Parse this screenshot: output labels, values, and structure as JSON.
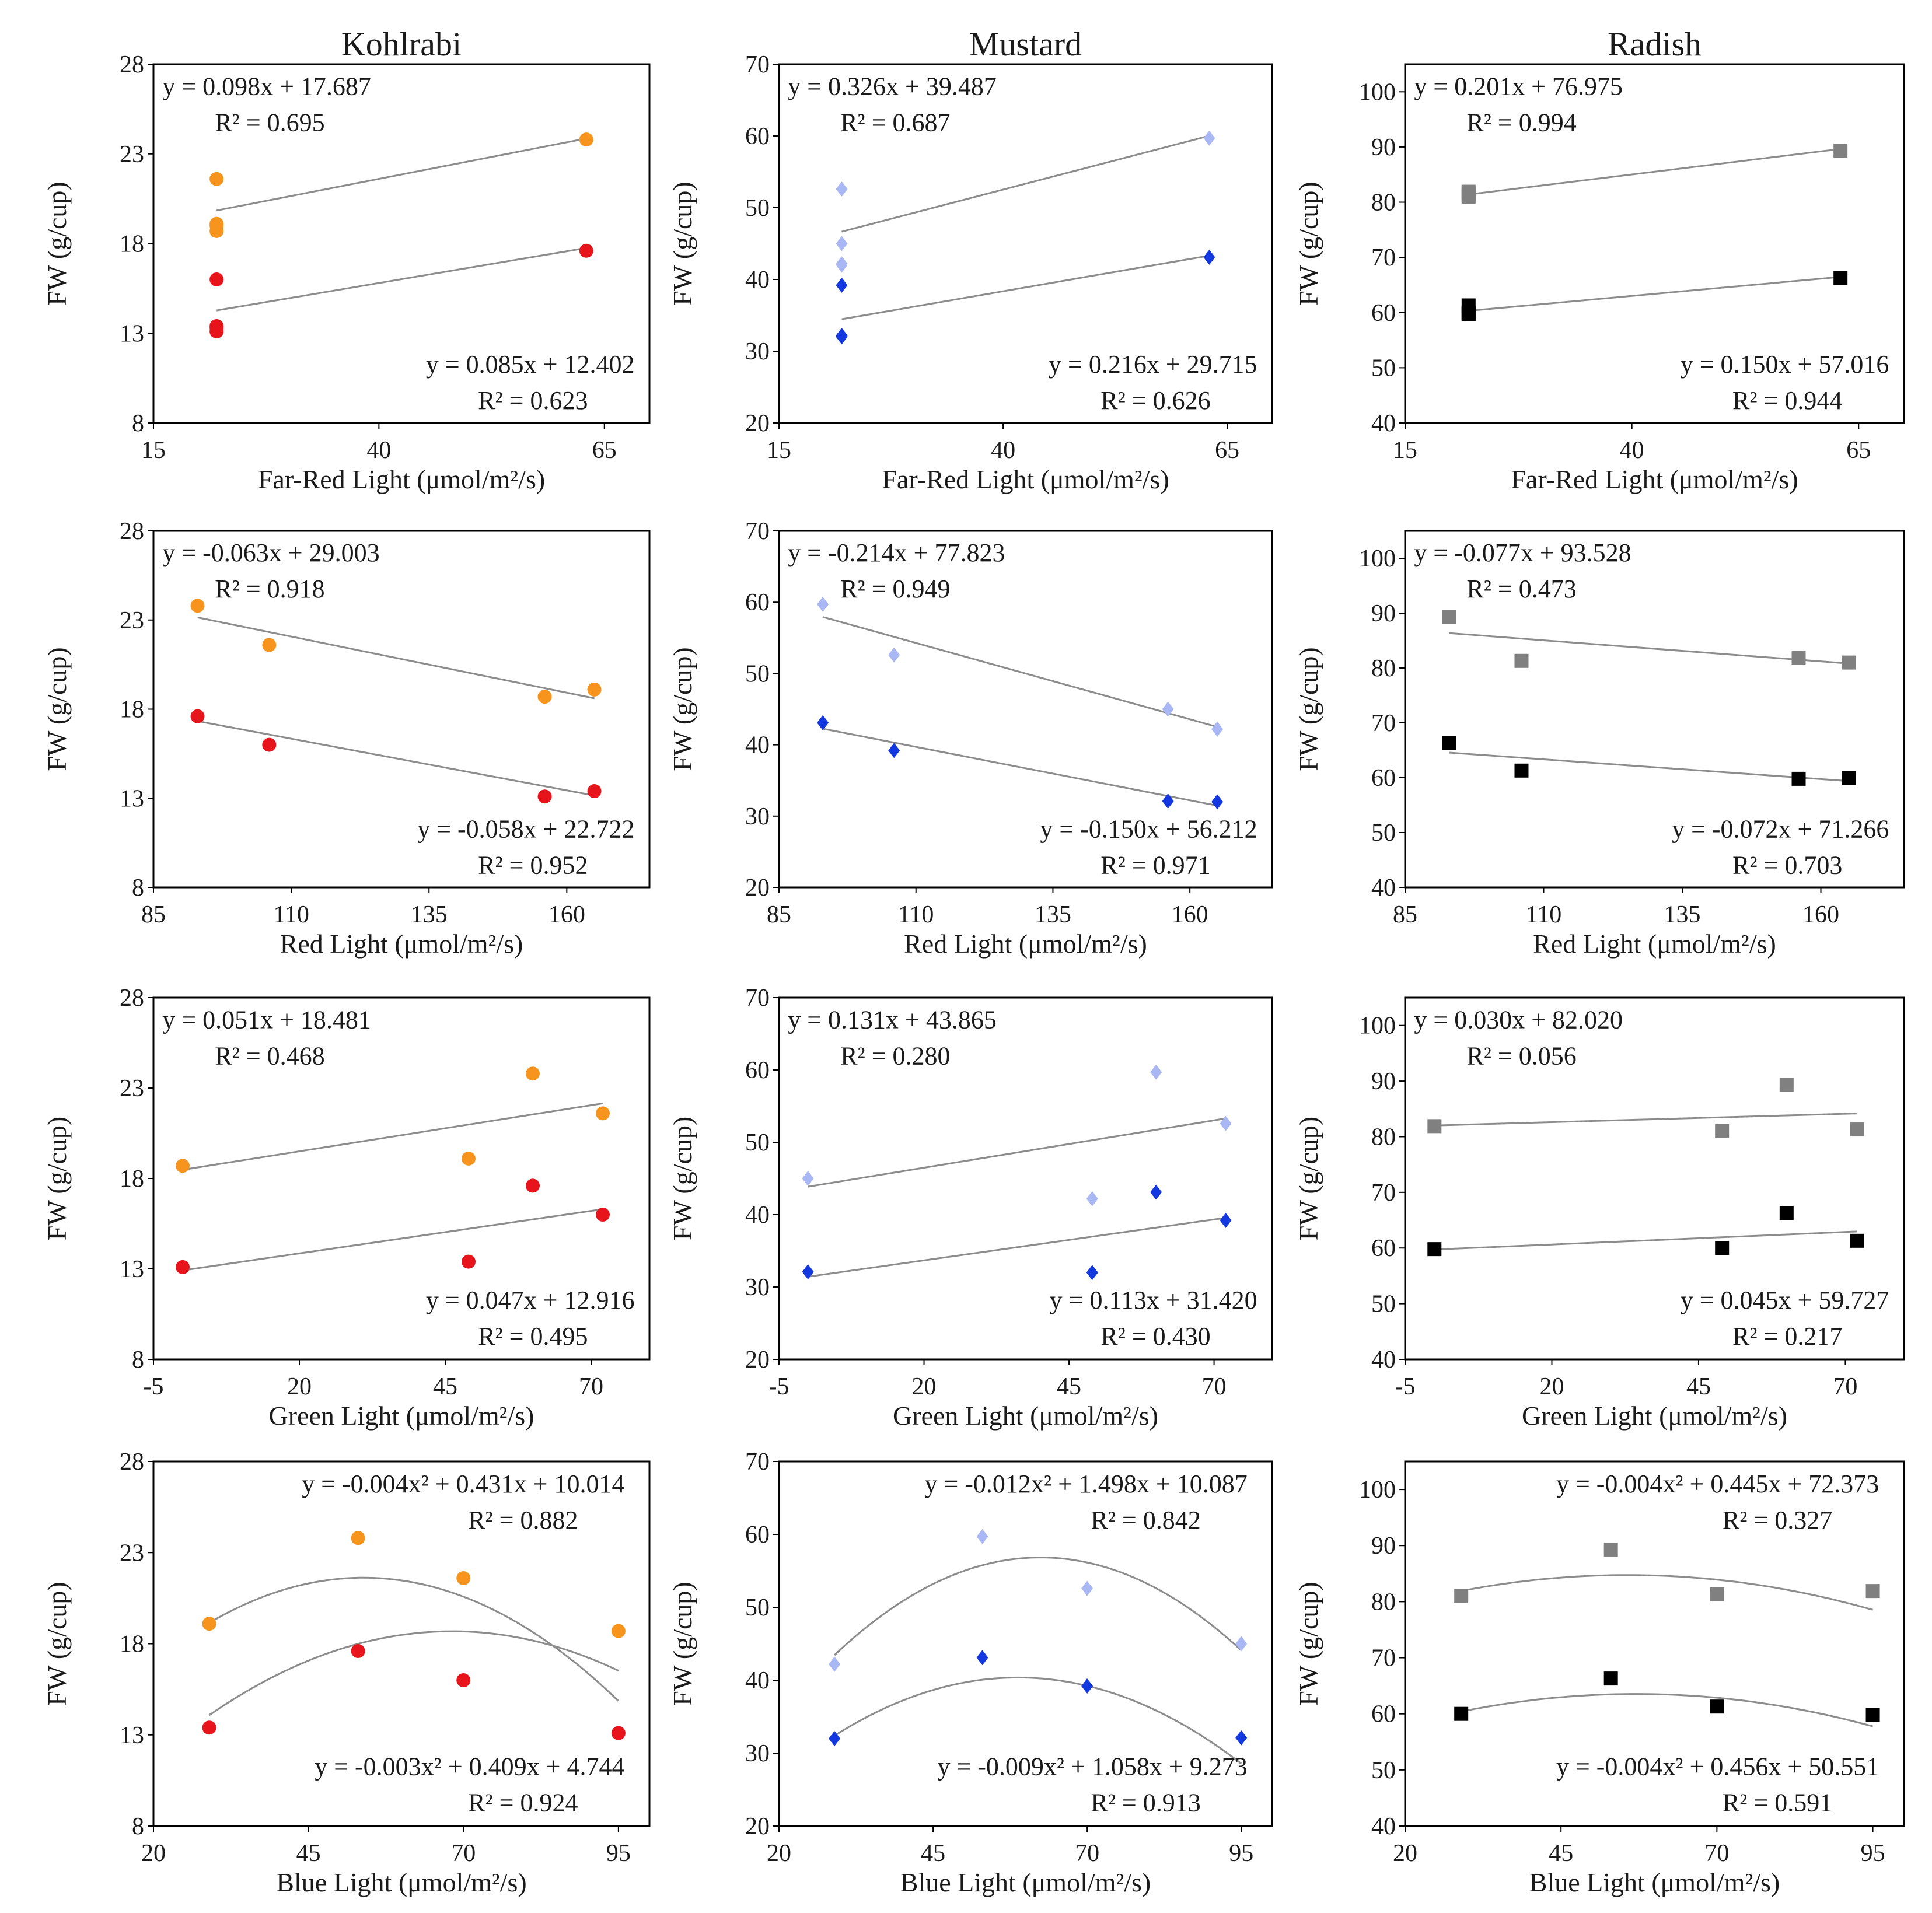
{
  "chart_data": [
    {
      "type": "scatter",
      "crop": "Kohlrabi",
      "title": "Kohlrabi",
      "xlabel": "Far-Red Light (μmol/m²/s)",
      "ylabel": "FW (g/cup)",
      "xlim": [
        15,
        70
      ],
      "xticks": [
        15,
        40,
        65
      ],
      "ylim": [
        8,
        28
      ],
      "yticks": [
        8,
        13,
        18,
        23,
        28
      ],
      "fit": "linear",
      "series": [
        {
          "name": "upper",
          "color": "#F7941D",
          "marker": "circle",
          "x": [
            22,
            22,
            22,
            22,
            63
          ],
          "y": [
            21.6,
            19.1,
            18.7,
            19.0,
            23.8
          ],
          "coef": [
            0.098,
            17.687
          ],
          "equation": "y = 0.098x + 17.687",
          "r2": "R² = 0.695"
        },
        {
          "name": "lower",
          "color": "#E8141B",
          "marker": "circle",
          "x": [
            22,
            22,
            22,
            22,
            63
          ],
          "y": [
            16.0,
            13.3,
            13.1,
            13.4,
            17.6
          ],
          "coef": [
            0.085,
            12.402
          ],
          "equation": "y = 0.085x + 12.402",
          "r2": "R² = 0.623"
        }
      ]
    },
    {
      "type": "scatter",
      "crop": "Mustard",
      "title": "Mustard",
      "xlabel": "Far-Red Light (μmol/m²/s)",
      "ylabel": "FW (g/cup)",
      "xlim": [
        15,
        70
      ],
      "xticks": [
        15,
        40,
        65
      ],
      "ylim": [
        20,
        70
      ],
      "yticks": [
        20,
        30,
        40,
        50,
        60,
        70
      ],
      "fit": "linear",
      "series": [
        {
          "name": "upper",
          "color": "#A9B8F5",
          "marker": "diamond",
          "x": [
            22,
            22,
            22,
            22,
            63
          ],
          "y": [
            52.6,
            45.0,
            42.2,
            42.0,
            59.7
          ],
          "coef": [
            0.326,
            39.487
          ],
          "equation": "y = 0.326x + 39.487",
          "r2": "R² = 0.687"
        },
        {
          "name": "lower",
          "color": "#1438E0",
          "marker": "diamond",
          "x": [
            22,
            22,
            22,
            22,
            63
          ],
          "y": [
            39.2,
            32.1,
            32.0,
            32.2,
            43.1
          ],
          "coef": [
            0.216,
            29.715
          ],
          "equation": "y = 0.216x + 29.715",
          "r2": "R² = 0.626"
        }
      ]
    },
    {
      "type": "scatter",
      "crop": "Radish",
      "title": "Radish",
      "xlabel": "Far-Red Light (μmol/m²/s)",
      "ylabel": "FW (g/cup)",
      "xlim": [
        15,
        70
      ],
      "xticks": [
        15,
        40,
        65
      ],
      "ylim": [
        40,
        105
      ],
      "yticks": [
        40,
        50,
        60,
        70,
        80,
        90,
        100
      ],
      "fit": "linear",
      "series": [
        {
          "name": "upper",
          "color": "#808080",
          "marker": "square",
          "x": [
            22,
            22,
            22,
            22,
            63
          ],
          "y": [
            81.9,
            81.0,
            81.3,
            81.6,
            89.3
          ],
          "coef": [
            0.201,
            76.975
          ],
          "equation": "y = 0.201x + 76.975",
          "r2": "R² = 0.994"
        },
        {
          "name": "lower",
          "color": "#000000",
          "marker": "square",
          "x": [
            22,
            22,
            22,
            22,
            63
          ],
          "y": [
            61.3,
            59.8,
            60.0,
            59.7,
            66.3
          ],
          "coef": [
            0.15,
            57.016
          ],
          "equation": "y = 0.150x + 57.016",
          "r2": "R² = 0.944"
        }
      ]
    },
    {
      "type": "scatter",
      "crop": "Kohlrabi",
      "xlabel": "Red Light (μmol/m²/s)",
      "ylabel": "FW (g/cup)",
      "xlim": [
        85,
        175
      ],
      "xticks": [
        85,
        110,
        135,
        160
      ],
      "ylim": [
        8,
        28
      ],
      "yticks": [
        8,
        13,
        18,
        23,
        28
      ],
      "fit": "linear",
      "series": [
        {
          "name": "upper",
          "color": "#F7941D",
          "marker": "circle",
          "x": [
            93,
            106,
            156,
            165
          ],
          "y": [
            23.8,
            21.6,
            18.7,
            19.1
          ],
          "coef": [
            -0.063,
            29.003
          ],
          "equation": "y = -0.063x + 29.003",
          "r2": "R² = 0.918"
        },
        {
          "name": "lower",
          "color": "#E8141B",
          "marker": "circle",
          "x": [
            93,
            106,
            156,
            165
          ],
          "y": [
            17.6,
            16.0,
            13.1,
            13.4
          ],
          "coef": [
            -0.058,
            22.722
          ],
          "equation": "y = -0.058x + 22.722",
          "r2": "R² = 0.952"
        }
      ]
    },
    {
      "type": "scatter",
      "crop": "Mustard",
      "xlabel": "Red Light (μmol/m²/s)",
      "ylabel": "FW (g/cup)",
      "xlim": [
        85,
        175
      ],
      "xticks": [
        85,
        110,
        135,
        160
      ],
      "ylim": [
        20,
        70
      ],
      "yticks": [
        20,
        30,
        40,
        50,
        60,
        70
      ],
      "fit": "linear",
      "series": [
        {
          "name": "upper",
          "color": "#A9B8F5",
          "marker": "diamond",
          "x": [
            93,
            106,
            156,
            165
          ],
          "y": [
            59.7,
            52.6,
            45.0,
            42.2
          ],
          "coef": [
            -0.214,
            77.823
          ],
          "equation": "y = -0.214x + 77.823",
          "r2": "R² = 0.949"
        },
        {
          "name": "lower",
          "color": "#1438E0",
          "marker": "diamond",
          "x": [
            93,
            106,
            156,
            165
          ],
          "y": [
            43.1,
            39.2,
            32.1,
            32.0
          ],
          "coef": [
            -0.15,
            56.212
          ],
          "equation": "y = -0.150x + 56.212",
          "r2": "R² = 0.971"
        }
      ]
    },
    {
      "type": "scatter",
      "crop": "Radish",
      "xlabel": "Red Light (μmol/m²/s)",
      "ylabel": "FW (g/cup)",
      "xlim": [
        85,
        175
      ],
      "xticks": [
        85,
        110,
        135,
        160
      ],
      "ylim": [
        40,
        105
      ],
      "yticks": [
        40,
        50,
        60,
        70,
        80,
        90,
        100
      ],
      "fit": "linear",
      "series": [
        {
          "name": "upper",
          "color": "#808080",
          "marker": "square",
          "x": [
            93,
            106,
            156,
            165
          ],
          "y": [
            89.3,
            81.3,
            81.9,
            81.0
          ],
          "coef": [
            -0.077,
            93.528
          ],
          "equation": "y = -0.077x + 93.528",
          "r2": "R² = 0.473"
        },
        {
          "name": "lower",
          "color": "#000000",
          "marker": "square",
          "x": [
            93,
            106,
            156,
            165
          ],
          "y": [
            66.3,
            61.3,
            59.8,
            60.0
          ],
          "coef": [
            -0.072,
            71.266
          ],
          "equation": "y = -0.072x + 71.266",
          "r2": "R² = 0.703"
        }
      ]
    },
    {
      "type": "scatter",
      "crop": "Kohlrabi",
      "xlabel": "Green Light (μmol/m²/s)",
      "ylabel": "FW (g/cup)",
      "xlim": [
        -5,
        80
      ],
      "xticks": [
        -5,
        20,
        45,
        70
      ],
      "ylim": [
        8,
        28
      ],
      "yticks": [
        8,
        13,
        18,
        23,
        28
      ],
      "fit": "linear",
      "series": [
        {
          "name": "upper",
          "color": "#F7941D",
          "marker": "circle",
          "x": [
            0,
            49,
            60,
            72
          ],
          "y": [
            18.7,
            19.1,
            23.8,
            21.6
          ],
          "coef": [
            0.051,
            18.481
          ],
          "equation": "y = 0.051x + 18.481",
          "r2": "R² = 0.468"
        },
        {
          "name": "lower",
          "color": "#E8141B",
          "marker": "circle",
          "x": [
            0,
            49,
            60,
            72
          ],
          "y": [
            13.1,
            13.4,
            17.6,
            16.0
          ],
          "coef": [
            0.047,
            12.916
          ],
          "equation": "y = 0.047x + 12.916",
          "r2": "R² = 0.495"
        }
      ]
    },
    {
      "type": "scatter",
      "crop": "Mustard",
      "xlabel": "Green Light (μmol/m²/s)",
      "ylabel": "FW (g/cup)",
      "xlim": [
        -5,
        80
      ],
      "xticks": [
        -5,
        20,
        45,
        70
      ],
      "ylim": [
        20,
        70
      ],
      "yticks": [
        20,
        30,
        40,
        50,
        60,
        70
      ],
      "fit": "linear",
      "series": [
        {
          "name": "upper",
          "color": "#A9B8F5",
          "marker": "diamond",
          "x": [
            0,
            49,
            60,
            72
          ],
          "y": [
            45.0,
            42.2,
            59.7,
            52.6
          ],
          "coef": [
            0.131,
            43.865
          ],
          "equation": "y = 0.131x + 43.865",
          "r2": "R² = 0.280"
        },
        {
          "name": "lower",
          "color": "#1438E0",
          "marker": "diamond",
          "x": [
            0,
            49,
            60,
            72
          ],
          "y": [
            32.1,
            32.0,
            43.1,
            39.2
          ],
          "coef": [
            0.113,
            31.42
          ],
          "equation": "y = 0.113x + 31.420",
          "r2": "R² = 0.430"
        }
      ]
    },
    {
      "type": "scatter",
      "crop": "Radish",
      "xlabel": "Green Light (μmol/m²/s)",
      "ylabel": "FW (g/cup)",
      "xlim": [
        -5,
        80
      ],
      "xticks": [
        -5,
        20,
        45,
        70
      ],
      "ylim": [
        40,
        105
      ],
      "yticks": [
        40,
        50,
        60,
        70,
        80,
        90,
        100
      ],
      "fit": "linear",
      "series": [
        {
          "name": "upper",
          "color": "#808080",
          "marker": "square",
          "x": [
            0,
            49,
            60,
            72
          ],
          "y": [
            81.9,
            81.0,
            89.3,
            81.3
          ],
          "coef": [
            0.03,
            82.02
          ],
          "equation": "y = 0.030x + 82.020",
          "r2": "R² = 0.056"
        },
        {
          "name": "lower",
          "color": "#000000",
          "marker": "square",
          "x": [
            0,
            49,
            60,
            72
          ],
          "y": [
            59.8,
            60.0,
            66.3,
            61.3
          ],
          "coef": [
            0.045,
            59.727
          ],
          "equation": "y = 0.045x + 59.727",
          "r2": "R² = 0.217"
        }
      ]
    },
    {
      "type": "scatter",
      "crop": "Kohlrabi",
      "xlabel": "Blue Light (μmol/m²/s)",
      "ylabel": "FW (g/cup)",
      "xlim": [
        20,
        100
      ],
      "xticks": [
        20,
        45,
        70,
        95
      ],
      "ylim": [
        8,
        28
      ],
      "yticks": [
        8,
        13,
        18,
        23,
        28
      ],
      "fit": "quadratic",
      "series": [
        {
          "name": "upper",
          "color": "#F7941D",
          "marker": "circle",
          "x": [
            29,
            53,
            70,
            95
          ],
          "y": [
            19.1,
            23.8,
            21.6,
            18.7
          ],
          "coef": [
            -0.004,
            0.431,
            10.014
          ],
          "equation": "y = -0.004x² + 0.431x + 10.014",
          "r2": "R² = 0.882"
        },
        {
          "name": "lower",
          "color": "#E8141B",
          "marker": "circle",
          "x": [
            29,
            53,
            70,
            95
          ],
          "y": [
            13.4,
            17.6,
            16.0,
            13.1
          ],
          "coef": [
            -0.003,
            0.409,
            4.744
          ],
          "equation": "y = -0.003x² + 0.409x + 4.744",
          "r2": "R² = 0.924"
        }
      ]
    },
    {
      "type": "scatter",
      "crop": "Mustard",
      "xlabel": "Blue Light (μmol/m²/s)",
      "ylabel": "FW (g/cup)",
      "xlim": [
        20,
        100
      ],
      "xticks": [
        20,
        45,
        70,
        95
      ],
      "ylim": [
        20,
        70
      ],
      "yticks": [
        20,
        30,
        40,
        50,
        60,
        70
      ],
      "fit": "quadratic",
      "series": [
        {
          "name": "upper",
          "color": "#A9B8F5",
          "marker": "diamond",
          "x": [
            29,
            53,
            70,
            95
          ],
          "y": [
            42.2,
            59.7,
            52.6,
            45.0
          ],
          "coef": [
            -0.012,
            1.498,
            10.087
          ],
          "equation": "y = -0.012x² + 1.498x + 10.087",
          "r2": "R² = 0.842"
        },
        {
          "name": "lower",
          "color": "#1438E0",
          "marker": "diamond",
          "x": [
            29,
            53,
            70,
            95
          ],
          "y": [
            32.0,
            43.1,
            39.2,
            32.1
          ],
          "coef": [
            -0.009,
            1.058,
            9.273
          ],
          "equation": "y = -0.009x² + 1.058x + 9.273",
          "r2": "R² = 0.913"
        }
      ]
    },
    {
      "type": "scatter",
      "crop": "Radish",
      "xlabel": "Blue Light (μmol/m²/s)",
      "ylabel": "FW (g/cup)",
      "xlim": [
        20,
        100
      ],
      "xticks": [
        20,
        45,
        70,
        95
      ],
      "ylim": [
        40,
        105
      ],
      "yticks": [
        40,
        50,
        60,
        70,
        80,
        90,
        100
      ],
      "fit": "quadratic",
      "series": [
        {
          "name": "upper",
          "color": "#808080",
          "marker": "square",
          "x": [
            29,
            53,
            70,
            95
          ],
          "y": [
            81.0,
            89.3,
            81.3,
            81.9
          ],
          "coef": [
            -0.004,
            0.445,
            72.373
          ],
          "equation": "y = -0.004x² + 0.445x + 72.373",
          "r2": "R² = 0.327"
        },
        {
          "name": "lower",
          "color": "#000000",
          "marker": "square",
          "x": [
            29,
            53,
            70,
            95
          ],
          "y": [
            60.0,
            66.3,
            61.3,
            59.8
          ],
          "coef": [
            -0.004,
            0.456,
            50.551
          ],
          "equation": "y = -0.004x² + 0.456x + 50.551",
          "r2": "R² = 0.591"
        }
      ]
    }
  ]
}
